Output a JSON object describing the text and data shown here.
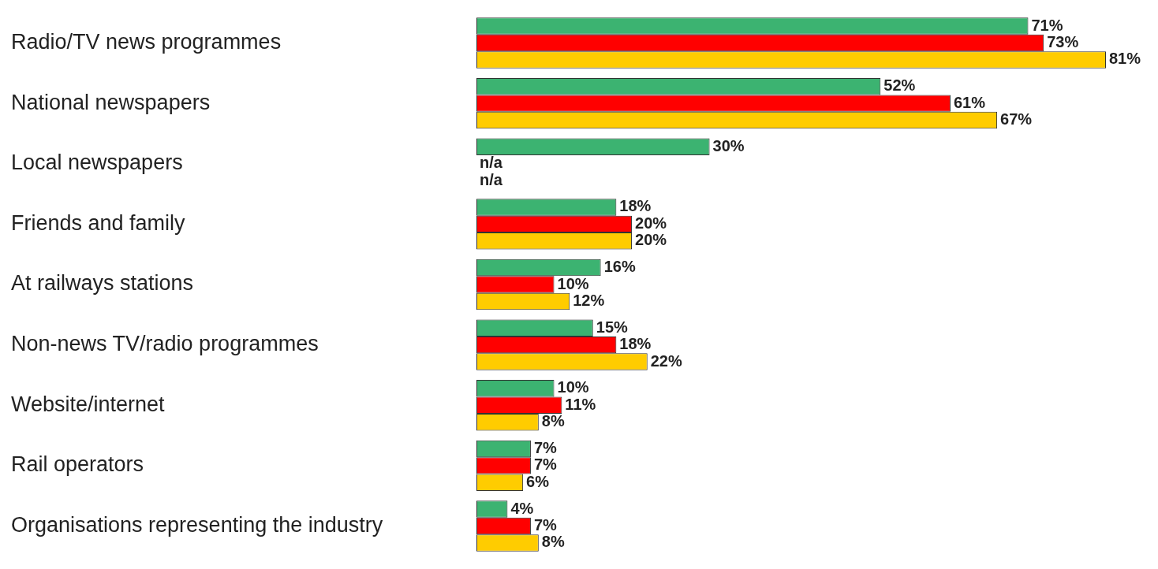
{
  "chart_data": {
    "type": "bar",
    "orientation": "horizontal",
    "tick_labels": "y",
    "categories": [
      "Radio/TV news programmes",
      "National newspapers",
      "Local newspapers",
      "Friends and family",
      "At railways stations",
      "Non-news TV/radio programmes",
      "Website/internet",
      "Rail operators",
      "Organisations representing the industry"
    ],
    "series": [
      {
        "color": "#3cb371",
        "values": [
          71,
          52,
          30,
          18,
          16,
          15,
          10,
          7,
          4
        ],
        "value_labels": [
          "71%",
          "52%",
          "30%",
          "18%",
          "16%",
          "15%",
          "10%",
          "7%",
          "4%"
        ]
      },
      {
        "color": "#ff0000",
        "values": [
          73,
          61,
          null,
          20,
          10,
          18,
          11,
          7,
          7
        ],
        "value_labels": [
          "73%",
          "61%",
          "n/a",
          "20%",
          "10%",
          "18%",
          "11%",
          "7%",
          "7%"
        ]
      },
      {
        "color": "#ffcc00",
        "values": [
          81,
          67,
          null,
          20,
          12,
          22,
          8,
          6,
          8
        ],
        "value_labels": [
          "81%",
          "67%",
          "n/a",
          "20%",
          "12%",
          "22%",
          "8%",
          "6%",
          "8%"
        ]
      }
    ]
  }
}
